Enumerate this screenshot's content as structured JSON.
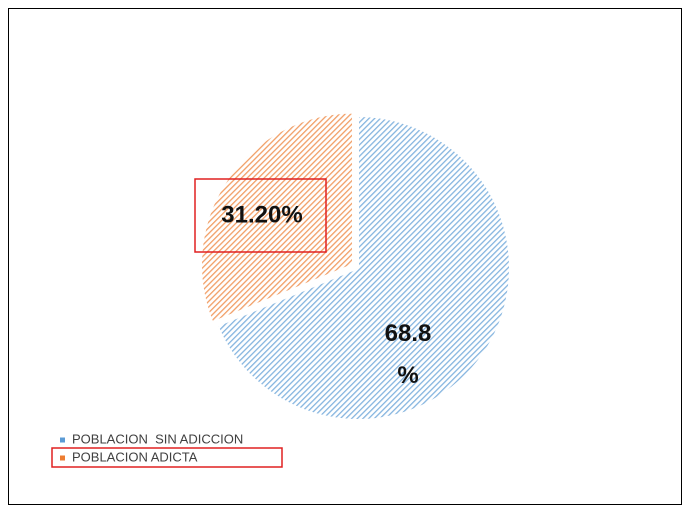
{
  "chart_data": {
    "type": "pie",
    "categories": [
      "POBLACION  SIN ADICCION",
      "POBLACION ADICTA"
    ],
    "values": [
      68.8,
      31.2
    ],
    "value_labels": [
      "68.8 %",
      "31.20%"
    ],
    "colors": [
      "#5b9bd5",
      "#ed7d31"
    ]
  }
}
